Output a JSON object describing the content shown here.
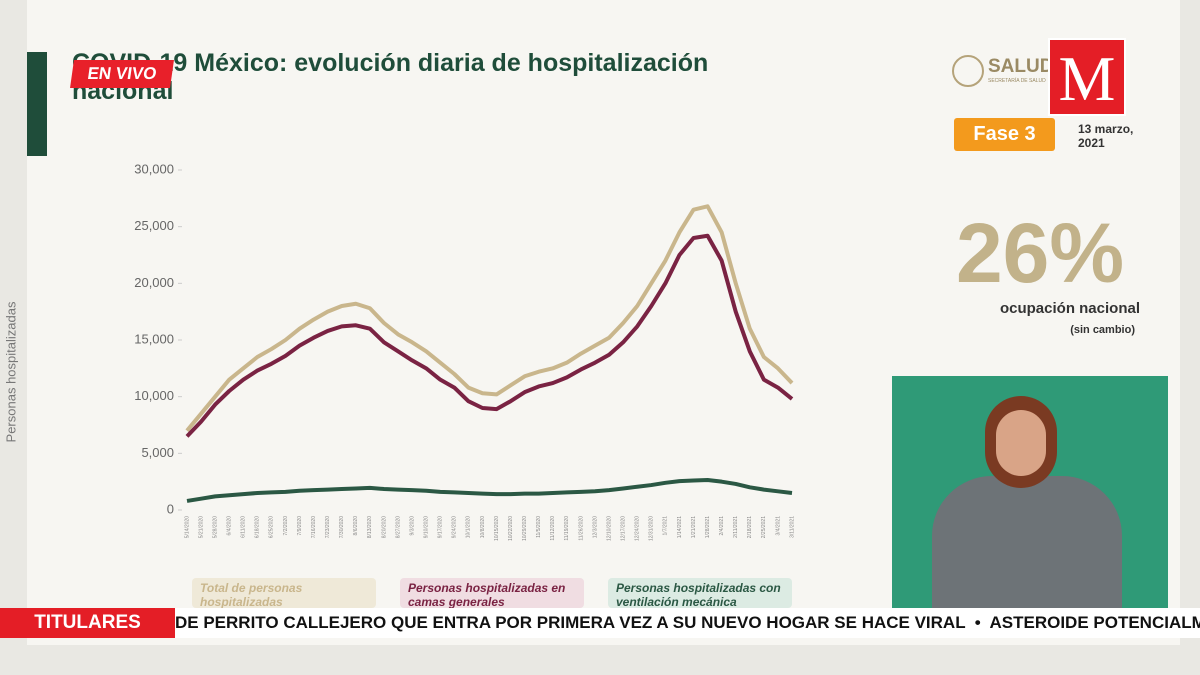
{
  "chart_data": {
    "type": "line",
    "title": "COVID-19 México: evolución diaria de hospitalización nacional",
    "ylabel": "Personas hospitalizadas",
    "x": [
      "5/14/2020",
      "5/21/2020",
      "5/28/2020",
      "6/4/2020",
      "6/11/2020",
      "6/18/2020",
      "6/25/2020",
      "7/2/2020",
      "7/9/2020",
      "7/16/2020",
      "7/23/2020",
      "7/30/2020",
      "8/6/2020",
      "8/13/2020",
      "8/20/2020",
      "8/27/2020",
      "9/3/2020",
      "9/10/2020",
      "9/17/2020",
      "9/24/2020",
      "10/1/2020",
      "10/8/2020",
      "10/15/2020",
      "10/22/2020",
      "10/29/2020",
      "11/5/2020",
      "11/12/2020",
      "11/19/2020",
      "11/26/2020",
      "12/3/2020",
      "12/10/2020",
      "12/17/2020",
      "12/24/2020",
      "12/31/2020",
      "1/7/2021",
      "1/14/2021",
      "1/21/2021",
      "1/28/2021",
      "2/4/2021",
      "2/11/2021",
      "2/18/2021",
      "2/25/2021",
      "3/4/2021",
      "3/11/2021"
    ],
    "series": [
      {
        "name": "Total de personas hospitalizadas",
        "color": "#c9b68c",
        "legend_bg": "#efe9d8",
        "values": [
          7000,
          8500,
          10000,
          11500,
          12500,
          13500,
          14200,
          15000,
          16000,
          16800,
          17500,
          18000,
          18200,
          17800,
          16500,
          15500,
          14800,
          14000,
          13000,
          12000,
          10800,
          10300,
          10200,
          11000,
          11800,
          12200,
          12500,
          13000,
          13800,
          14500,
          15200,
          16500,
          18000,
          20000,
          22000,
          24500,
          26500,
          26800,
          24500,
          20000,
          16000,
          13500,
          12500,
          11200
        ]
      },
      {
        "name": "Personas hospitalizadas en camas generales",
        "color": "#7a2343",
        "legend_bg": "#f0dde2",
        "values": [
          6500,
          7800,
          9300,
          10500,
          11500,
          12300,
          12900,
          13600,
          14500,
          15200,
          15800,
          16200,
          16300,
          16000,
          14800,
          14000,
          13200,
          12500,
          11500,
          10800,
          9600,
          9000,
          8900,
          9600,
          10400,
          10900,
          11200,
          11700,
          12400,
          13000,
          13700,
          14800,
          16200,
          18000,
          20000,
          22500,
          24000,
          24200,
          22000,
          17500,
          14000,
          11500,
          10800,
          9800
        ]
      },
      {
        "name": "Personas hospitalizadas con ventilación mecánica",
        "color": "#2b5844",
        "legend_bg": "#dcebe3",
        "values": [
          800,
          1000,
          1200,
          1300,
          1400,
          1500,
          1550,
          1600,
          1700,
          1750,
          1800,
          1850,
          1900,
          1950,
          1850,
          1800,
          1750,
          1700,
          1600,
          1550,
          1500,
          1450,
          1400,
          1400,
          1450,
          1450,
          1500,
          1550,
          1600,
          1650,
          1750,
          1900,
          2050,
          2200,
          2400,
          2550,
          2600,
          2650,
          2500,
          2300,
          2000,
          1800,
          1650,
          1500
        ]
      }
    ],
    "ylim": [
      0,
      30000
    ],
    "yticks": [
      0,
      {
        "value": 5000,
        "label": "5,000"
      },
      {
        "value": 10000,
        "label": "10,000"
      },
      {
        "value": 15000,
        "label": "15,000"
      },
      {
        "value": 20000,
        "label": "20,000"
      },
      {
        "value": 25000,
        "label": "25,000"
      },
      {
        "value": 30000,
        "label": "30,000"
      }
    ],
    "grid": false
  },
  "header": {
    "logo": "SALUD",
    "logo_sub": "SECRETARÍA DE SALUD",
    "phase": "Fase 3",
    "date": "13 marzo, 2021"
  },
  "stats": {
    "occupancy": "26%",
    "occupancy_label": "ocupación nacional",
    "occupancy_note": "(sin cambio)"
  },
  "broadcast": {
    "live": "EN VIVO",
    "channel_logo": "M",
    "ticker_label": "TITULARES",
    "ticker_text": "DE PERRITO CALLEJERO QUE ENTRA POR PRIMERA VEZ A SU NUEVO HOGAR SE HACE VIRAL  •  ASTEROIDE POTENCIALMENTE"
  }
}
